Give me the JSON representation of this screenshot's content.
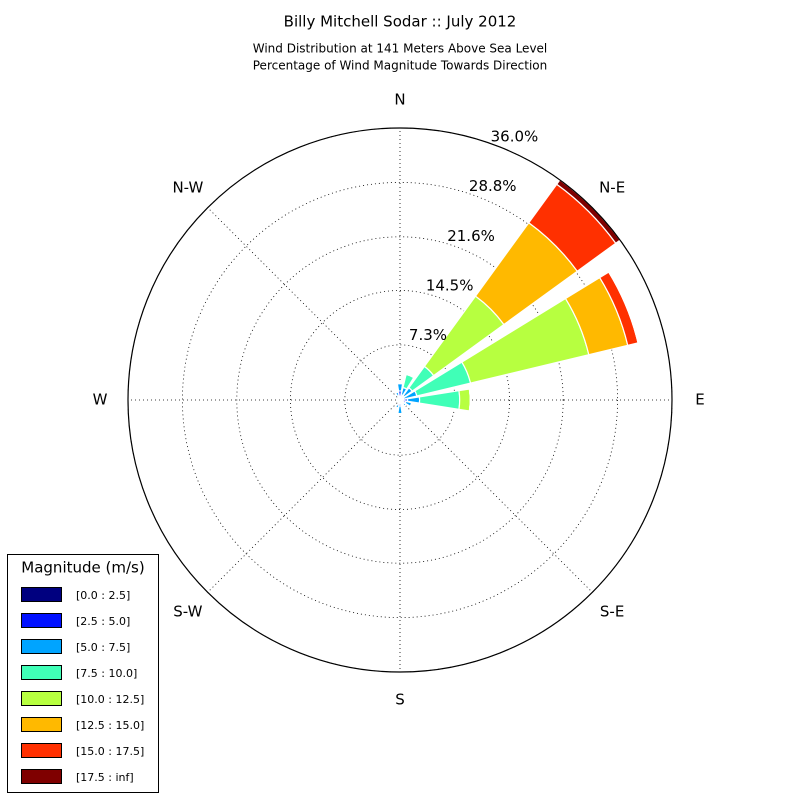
{
  "chart_data": {
    "type": "windrose",
    "title": "Billy Mitchell Sodar :: July 2012",
    "subtitle": [
      "Wind Distribution at 141 Meters Above Sea Level",
      "Percentage of Wind Magnitude Towards Direction"
    ],
    "categories": [
      "N",
      null,
      "N-E",
      null,
      "E",
      null,
      "S-E",
      null,
      "S",
      null,
      "S-W",
      null,
      "W",
      null,
      "N-W",
      null
    ],
    "legend_title": "Magnitude (m/s)",
    "rlim": [
      0,
      36
    ],
    "rticks": [
      {
        "value": 7.3,
        "label": "7.3%"
      },
      {
        "value": 14.5,
        "label": "14.5%"
      },
      {
        "value": 21.6,
        "label": "21.6%"
      },
      {
        "value": 28.8,
        "label": "28.8%"
      },
      {
        "value": 36.0,
        "label": "36.0%"
      }
    ],
    "grid": true,
    "series": [
      {
        "name": "[0.0 : 2.5]",
        "color": "#00007f",
        "values": [
          0.3,
          0.2,
          0.2,
          0.1,
          0.2,
          0.2,
          0.2,
          0.1,
          0.2,
          0.2,
          0.1,
          0.1,
          0.1,
          0.1,
          0.1,
          0.2
        ]
      },
      {
        "name": "[2.5 : 5.0]",
        "color": "#0010ff",
        "values": [
          0.9,
          0.5,
          0.5,
          0.4,
          0.8,
          0.6,
          0.5,
          0.3,
          0.6,
          0.5,
          0.2,
          0.2,
          0.2,
          0.2,
          0.2,
          0.4
        ]
      },
      {
        "name": "[5.0 : 7.5]",
        "color": "#00a4ff",
        "values": [
          1.0,
          1.0,
          1.3,
          1.8,
          1.6,
          0.8,
          0.3,
          0.3,
          1.0,
          0.4,
          0.1,
          0.1,
          0.1,
          0.1,
          0.1,
          0.5
        ]
      },
      {
        "name": "[7.5 : 10.0]",
        "color": "#40ffb7",
        "values": [
          0,
          1.8,
          3.5,
          7.3,
          5.3,
          0,
          0,
          0,
          0,
          0,
          0,
          0,
          0,
          0,
          0,
          0
        ]
      },
      {
        "name": "[10.0 : 12.5]",
        "color": "#b7ff40",
        "values": [
          0,
          0,
          11.5,
          16.1,
          1.4,
          0,
          0,
          0,
          0,
          0,
          0,
          0,
          0,
          0,
          0,
          0
        ]
      },
      {
        "name": "[12.5 : 15.0]",
        "color": "#ffb900",
        "values": [
          0,
          0,
          12.0,
          5.3,
          0,
          0,
          0,
          0,
          0,
          0,
          0,
          0,
          0,
          0,
          0,
          0
        ]
      },
      {
        "name": "[15.0 : 17.5]",
        "color": "#ff3000",
        "values": [
          0,
          0,
          6.3,
          1.4,
          0,
          0,
          0,
          0,
          0,
          0,
          0,
          0,
          0,
          0,
          0,
          0
        ]
      },
      {
        "name": "[17.5 : inf]",
        "color": "#7f0000",
        "values": [
          0,
          0,
          0.7,
          0,
          0,
          0,
          0,
          0,
          0,
          0,
          0,
          0,
          0,
          0,
          0,
          0
        ]
      }
    ]
  }
}
